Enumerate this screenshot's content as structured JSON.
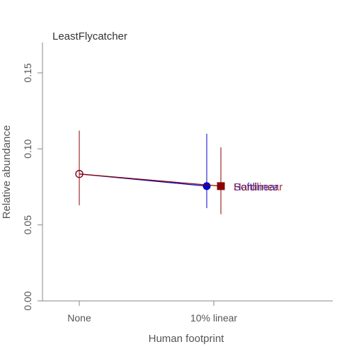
{
  "chart_data": {
    "type": "line",
    "title": "LeastFlycatcher",
    "xlabel": "Human footprint",
    "ylabel": "Relative abundance",
    "categories": [
      "None",
      "10% linear"
    ],
    "ylim": [
      0,
      0.17
    ],
    "yticks": [
      "0.00",
      "0.05",
      "0.10",
      "0.15"
    ],
    "grid": false,
    "series": [
      {
        "name": "Softlinear",
        "color": "#0000CC",
        "marker": "circle",
        "values": [
          0.0835,
          0.0755
        ],
        "lower": [
          0.063,
          0.061
        ],
        "upper": [
          0.112,
          0.11
        ]
      },
      {
        "name": "Hardlinear",
        "color": "#8B0000",
        "marker": "square",
        "values": [
          0.0835,
          0.0755
        ],
        "lower": [
          0.063,
          0.057
        ],
        "upper": [
          0.112,
          0.101
        ]
      }
    ]
  }
}
